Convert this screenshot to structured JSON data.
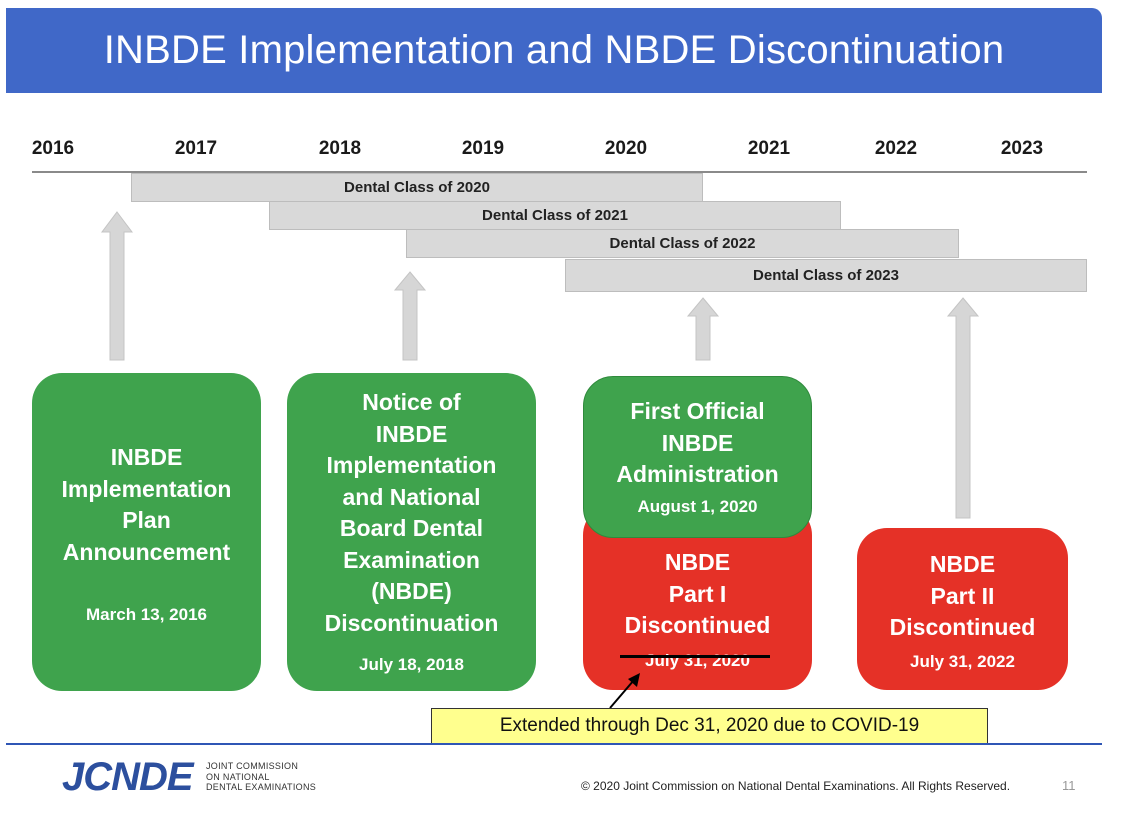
{
  "title": "INBDE Implementation and NBDE Discontinuation",
  "years": [
    "2016",
    "2017",
    "2018",
    "2019",
    "2020",
    "2021",
    "2022",
    "2023"
  ],
  "class_bars": [
    "Dental Class of 2020",
    "Dental Class of 2021",
    "Dental Class of 2022",
    "Dental Class of 2023"
  ],
  "boxes": {
    "announcement": {
      "lines": [
        "INBDE",
        "Implementation",
        "Plan",
        "Announcement"
      ],
      "date": "March 13, 2016"
    },
    "notice": {
      "lines": [
        "Notice of",
        "INBDE",
        "Implementation",
        "and National",
        "Board Dental",
        "Examination",
        "(NBDE)",
        "Discontinuation"
      ],
      "date": "July 18, 2018"
    },
    "first_admin": {
      "lines": [
        "First Official",
        "INBDE",
        "Administration"
      ],
      "date": "August 1, 2020"
    },
    "part1": {
      "lines": [
        "NBDE",
        "Part I",
        "Discontinued"
      ],
      "date": "July 31, 2020"
    },
    "part2": {
      "lines": [
        "NBDE",
        "Part II",
        "Discontinued"
      ],
      "date": "July 31, 2022"
    }
  },
  "callout": "Extended through Dec 31, 2020 due to COVID-19",
  "footer": {
    "logo": "JCNDE",
    "logo_sub": [
      "JOINT COMMISSION",
      "ON NATIONAL",
      "DENTAL EXAMINATIONS"
    ],
    "copyright": "© 2020 Joint Commission on National Dental Examinations. All Rights Reserved.",
    "page": "11"
  },
  "colors": {
    "title_bar": "#4068c8",
    "green": "#3fa34d",
    "red": "#e53127",
    "callout": "#ffff8e",
    "bar_gray": "#d9d9d9"
  }
}
